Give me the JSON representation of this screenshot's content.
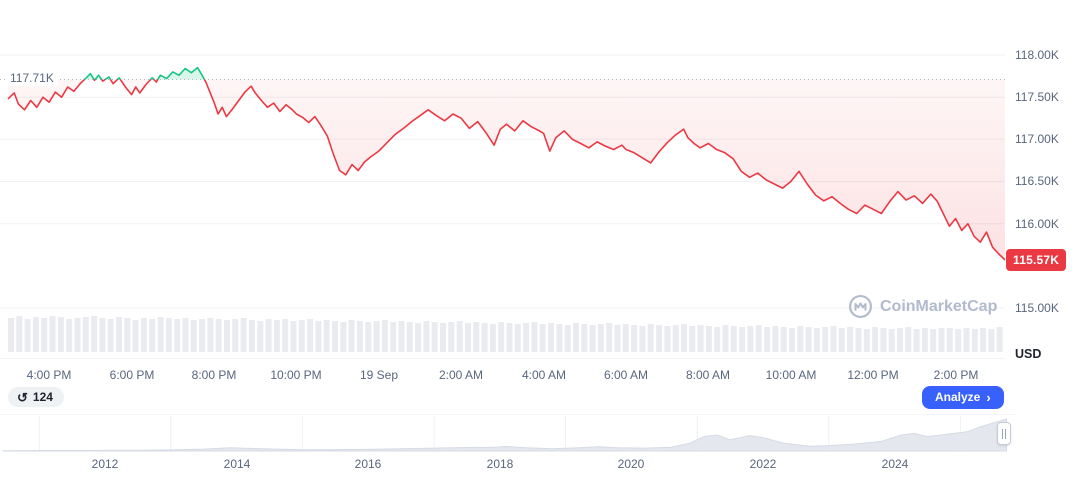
{
  "ui": {
    "watermark": "CoinMarketCap",
    "usd_label": "USD",
    "history_badge": {
      "count": "124"
    },
    "analyze_button": {
      "label": "Analyze"
    },
    "icons": {
      "history": "↺",
      "chevron_right": "›"
    }
  },
  "colors": {
    "up": "#16c784",
    "down": "#ea3943",
    "accent_blue": "#3861fb",
    "axis_text": "#58667e",
    "gridline": "#f0f2f5",
    "volume_bar": "#e9ebef",
    "brush_fill": "#e4e8ee",
    "badge_bg": "#ea3943"
  },
  "chart_data": [
    {
      "type": "line",
      "name": "intraday-price",
      "ylabel": "USD",
      "ylim": [
        115.0,
        118.3
      ],
      "grid": "horizontal",
      "yticks": [
        {
          "label": "118.00K",
          "value": 118.0
        },
        {
          "label": "117.50K",
          "value": 117.5
        },
        {
          "label": "117.00K",
          "value": 117.0
        },
        {
          "label": "116.50K",
          "value": 116.5
        },
        {
          "label": "116.00K",
          "value": 116.0
        },
        {
          "label": "115.00K",
          "value": 115.0
        }
      ],
      "reference": {
        "label": "117.71K",
        "value": 117.71
      },
      "last_price": {
        "label": "115.57K",
        "value": 115.57
      },
      "x_axis_labels": [
        {
          "label": "4:00 PM",
          "h": 1
        },
        {
          "label": "6:00 PM",
          "h": 3
        },
        {
          "label": "8:00 PM",
          "h": 5
        },
        {
          "label": "10:00 PM",
          "h": 7
        },
        {
          "label": "19 Sep",
          "h": 9
        },
        {
          "label": "2:00 AM",
          "h": 11
        },
        {
          "label": "4:00 AM",
          "h": 13
        },
        {
          "label": "6:00 AM",
          "h": 15
        },
        {
          "label": "8:00 AM",
          "h": 17
        },
        {
          "label": "10:00 AM",
          "h": 19
        },
        {
          "label": "12:00 PM",
          "h": 21
        },
        {
          "label": "2:00 PM",
          "h": 23
        }
      ],
      "series": [
        {
          "name": "price",
          "points": [
            [
              0,
              117.48
            ],
            [
              0.15,
              117.55
            ],
            [
              0.25,
              117.42
            ],
            [
              0.4,
              117.35
            ],
            [
              0.55,
              117.46
            ],
            [
              0.7,
              117.38
            ],
            [
              0.85,
              117.5
            ],
            [
              1,
              117.44
            ],
            [
              1.15,
              117.56
            ],
            [
              1.3,
              117.5
            ],
            [
              1.45,
              117.62
            ],
            [
              1.6,
              117.57
            ],
            [
              1.75,
              117.66
            ],
            [
              1.9,
              117.73
            ],
            [
              2,
              117.78
            ],
            [
              2.1,
              117.7
            ],
            [
              2.2,
              117.76
            ],
            [
              2.3,
              117.69
            ],
            [
              2.45,
              117.74
            ],
            [
              2.55,
              117.66
            ],
            [
              2.7,
              117.73
            ],
            [
              2.85,
              117.62
            ],
            [
              3,
              117.53
            ],
            [
              3.1,
              117.62
            ],
            [
              3.2,
              117.55
            ],
            [
              3.35,
              117.65
            ],
            [
              3.5,
              117.73
            ],
            [
              3.6,
              117.68
            ],
            [
              3.7,
              117.76
            ],
            [
              3.85,
              117.72
            ],
            [
              4,
              117.8
            ],
            [
              4.15,
              117.76
            ],
            [
              4.3,
              117.84
            ],
            [
              4.45,
              117.79
            ],
            [
              4.6,
              117.85
            ],
            [
              4.7,
              117.77
            ],
            [
              4.8,
              117.68
            ],
            [
              4.9,
              117.56
            ],
            [
              5,
              117.44
            ],
            [
              5.1,
              117.3
            ],
            [
              5.2,
              117.38
            ],
            [
              5.3,
              117.27
            ],
            [
              5.45,
              117.36
            ],
            [
              5.6,
              117.46
            ],
            [
              5.75,
              117.56
            ],
            [
              5.9,
              117.63
            ],
            [
              6,
              117.55
            ],
            [
              6.15,
              117.46
            ],
            [
              6.3,
              117.38
            ],
            [
              6.45,
              117.43
            ],
            [
              6.6,
              117.33
            ],
            [
              6.75,
              117.41
            ],
            [
              6.9,
              117.35
            ],
            [
              7,
              117.3
            ],
            [
              7.15,
              117.26
            ],
            [
              7.3,
              117.2
            ],
            [
              7.45,
              117.27
            ],
            [
              7.6,
              117.16
            ],
            [
              7.75,
              117.04
            ],
            [
              7.9,
              116.82
            ],
            [
              8.05,
              116.63
            ],
            [
              8.2,
              116.58
            ],
            [
              8.35,
              116.7
            ],
            [
              8.5,
              116.63
            ],
            [
              8.65,
              116.73
            ],
            [
              8.8,
              116.79
            ],
            [
              9,
              116.86
            ],
            [
              9.2,
              116.96
            ],
            [
              9.4,
              117.06
            ],
            [
              9.6,
              117.13
            ],
            [
              9.8,
              117.21
            ],
            [
              10,
              117.28
            ],
            [
              10.2,
              117.35
            ],
            [
              10.4,
              117.28
            ],
            [
              10.6,
              117.22
            ],
            [
              10.8,
              117.3
            ],
            [
              11,
              117.25
            ],
            [
              11.2,
              117.13
            ],
            [
              11.4,
              117.21
            ],
            [
              11.6,
              117.08
            ],
            [
              11.8,
              116.93
            ],
            [
              11.95,
              117.12
            ],
            [
              12.1,
              117.18
            ],
            [
              12.3,
              117.1
            ],
            [
              12.5,
              117.22
            ],
            [
              12.7,
              117.15
            ],
            [
              12.9,
              117.1
            ],
            [
              13,
              117.07
            ],
            [
              13.15,
              116.86
            ],
            [
              13.3,
              117.02
            ],
            [
              13.5,
              117.1
            ],
            [
              13.7,
              117.0
            ],
            [
              13.9,
              116.95
            ],
            [
              14.1,
              116.9
            ],
            [
              14.3,
              116.97
            ],
            [
              14.5,
              116.92
            ],
            [
              14.7,
              116.88
            ],
            [
              14.9,
              116.93
            ],
            [
              15,
              116.88
            ],
            [
              15.2,
              116.84
            ],
            [
              15.4,
              116.78
            ],
            [
              15.6,
              116.72
            ],
            [
              15.8,
              116.85
            ],
            [
              16,
              116.96
            ],
            [
              16.2,
              117.05
            ],
            [
              16.4,
              117.12
            ],
            [
              16.5,
              117.02
            ],
            [
              16.65,
              116.95
            ],
            [
              16.8,
              116.9
            ],
            [
              17,
              116.95
            ],
            [
              17.2,
              116.88
            ],
            [
              17.4,
              116.84
            ],
            [
              17.6,
              116.77
            ],
            [
              17.8,
              116.62
            ],
            [
              18,
              116.55
            ],
            [
              18.2,
              116.6
            ],
            [
              18.4,
              116.52
            ],
            [
              18.6,
              116.47
            ],
            [
              18.8,
              116.42
            ],
            [
              19,
              116.5
            ],
            [
              19.2,
              116.62
            ],
            [
              19.4,
              116.47
            ],
            [
              19.6,
              116.34
            ],
            [
              19.8,
              116.27
            ],
            [
              20,
              116.32
            ],
            [
              20.2,
              116.24
            ],
            [
              20.4,
              116.17
            ],
            [
              20.6,
              116.12
            ],
            [
              20.8,
              116.22
            ],
            [
              21,
              116.17
            ],
            [
              21.2,
              116.12
            ],
            [
              21.4,
              116.26
            ],
            [
              21.6,
              116.38
            ],
            [
              21.8,
              116.28
            ],
            [
              22,
              116.33
            ],
            [
              22.2,
              116.24
            ],
            [
              22.4,
              116.35
            ],
            [
              22.55,
              116.27
            ],
            [
              22.7,
              116.12
            ],
            [
              22.85,
              115.97
            ],
            [
              23,
              116.06
            ],
            [
              23.15,
              115.92
            ],
            [
              23.3,
              116.0
            ],
            [
              23.45,
              115.85
            ],
            [
              23.6,
              115.78
            ],
            [
              23.75,
              115.9
            ],
            [
              23.9,
              115.72
            ],
            [
              24.05,
              115.64
            ],
            [
              24.2,
              115.57
            ]
          ]
        }
      ],
      "volume_bars": [
        34,
        36,
        33,
        35,
        34,
        36,
        35,
        33,
        34,
        35,
        36,
        34,
        33,
        35,
        34,
        32,
        34,
        33,
        35,
        34,
        33,
        34,
        32,
        33,
        34,
        33,
        32,
        33,
        34,
        32,
        31,
        33,
        32,
        33,
        31,
        32,
        33,
        31,
        32,
        31,
        30,
        32,
        31,
        30,
        31,
        32,
        30,
        31,
        30,
        29,
        31,
        30,
        29,
        30,
        31,
        29,
        30,
        29,
        28,
        30,
        29,
        28,
        29,
        30,
        28,
        29,
        28,
        27,
        29,
        28,
        27,
        28,
        29,
        27,
        28,
        27,
        26,
        28,
        27,
        26,
        27,
        28,
        26,
        27,
        26,
        25,
        27,
        26,
        25,
        26,
        27,
        25,
        26,
        25,
        24,
        26,
        25,
        24,
        25,
        26,
        24,
        25,
        24,
        23,
        25,
        24,
        23,
        24,
        25,
        23,
        24,
        23,
        24,
        24,
        23,
        24,
        23,
        24,
        23,
        25
      ]
    },
    {
      "type": "area",
      "name": "all-time-overview-brush",
      "x_labels": [
        "2012",
        "2014",
        "2016",
        "2018",
        "2020",
        "2022",
        "2024"
      ],
      "ylim": [
        0,
        1
      ],
      "points": [
        [
          2010.45,
          0.01
        ],
        [
          2011,
          0.015
        ],
        [
          2011.5,
          0.015
        ],
        [
          2012,
          0.02
        ],
        [
          2012.5,
          0.02
        ],
        [
          2013,
          0.035
        ],
        [
          2013.5,
          0.06
        ],
        [
          2013.9,
          0.1
        ],
        [
          2014.2,
          0.08
        ],
        [
          2014.6,
          0.06
        ],
        [
          2015,
          0.04
        ],
        [
          2015.5,
          0.045
        ],
        [
          2016,
          0.05
        ],
        [
          2016.5,
          0.07
        ],
        [
          2017,
          0.09
        ],
        [
          2017.5,
          0.11
        ],
        [
          2017.9,
          0.12
        ],
        [
          2018.1,
          0.14
        ],
        [
          2018.4,
          0.1
        ],
        [
          2018.8,
          0.07
        ],
        [
          2019.2,
          0.1
        ],
        [
          2019.5,
          0.13
        ],
        [
          2019.8,
          0.1
        ],
        [
          2020.2,
          0.09
        ],
        [
          2020.6,
          0.12
        ],
        [
          2020.9,
          0.25
        ],
        [
          2021.1,
          0.45
        ],
        [
          2021.3,
          0.5
        ],
        [
          2021.5,
          0.35
        ],
        [
          2021.8,
          0.48
        ],
        [
          2022,
          0.42
        ],
        [
          2022.3,
          0.25
        ],
        [
          2022.7,
          0.15
        ],
        [
          2023,
          0.17
        ],
        [
          2023.4,
          0.22
        ],
        [
          2023.8,
          0.3
        ],
        [
          2024.1,
          0.5
        ],
        [
          2024.3,
          0.55
        ],
        [
          2024.5,
          0.45
        ],
        [
          2024.7,
          0.5
        ],
        [
          2024.9,
          0.55
        ],
        [
          2025.1,
          0.6
        ],
        [
          2025.3,
          0.75
        ],
        [
          2025.5,
          0.88
        ],
        [
          2025.7,
          1.0
        ]
      ]
    }
  ]
}
